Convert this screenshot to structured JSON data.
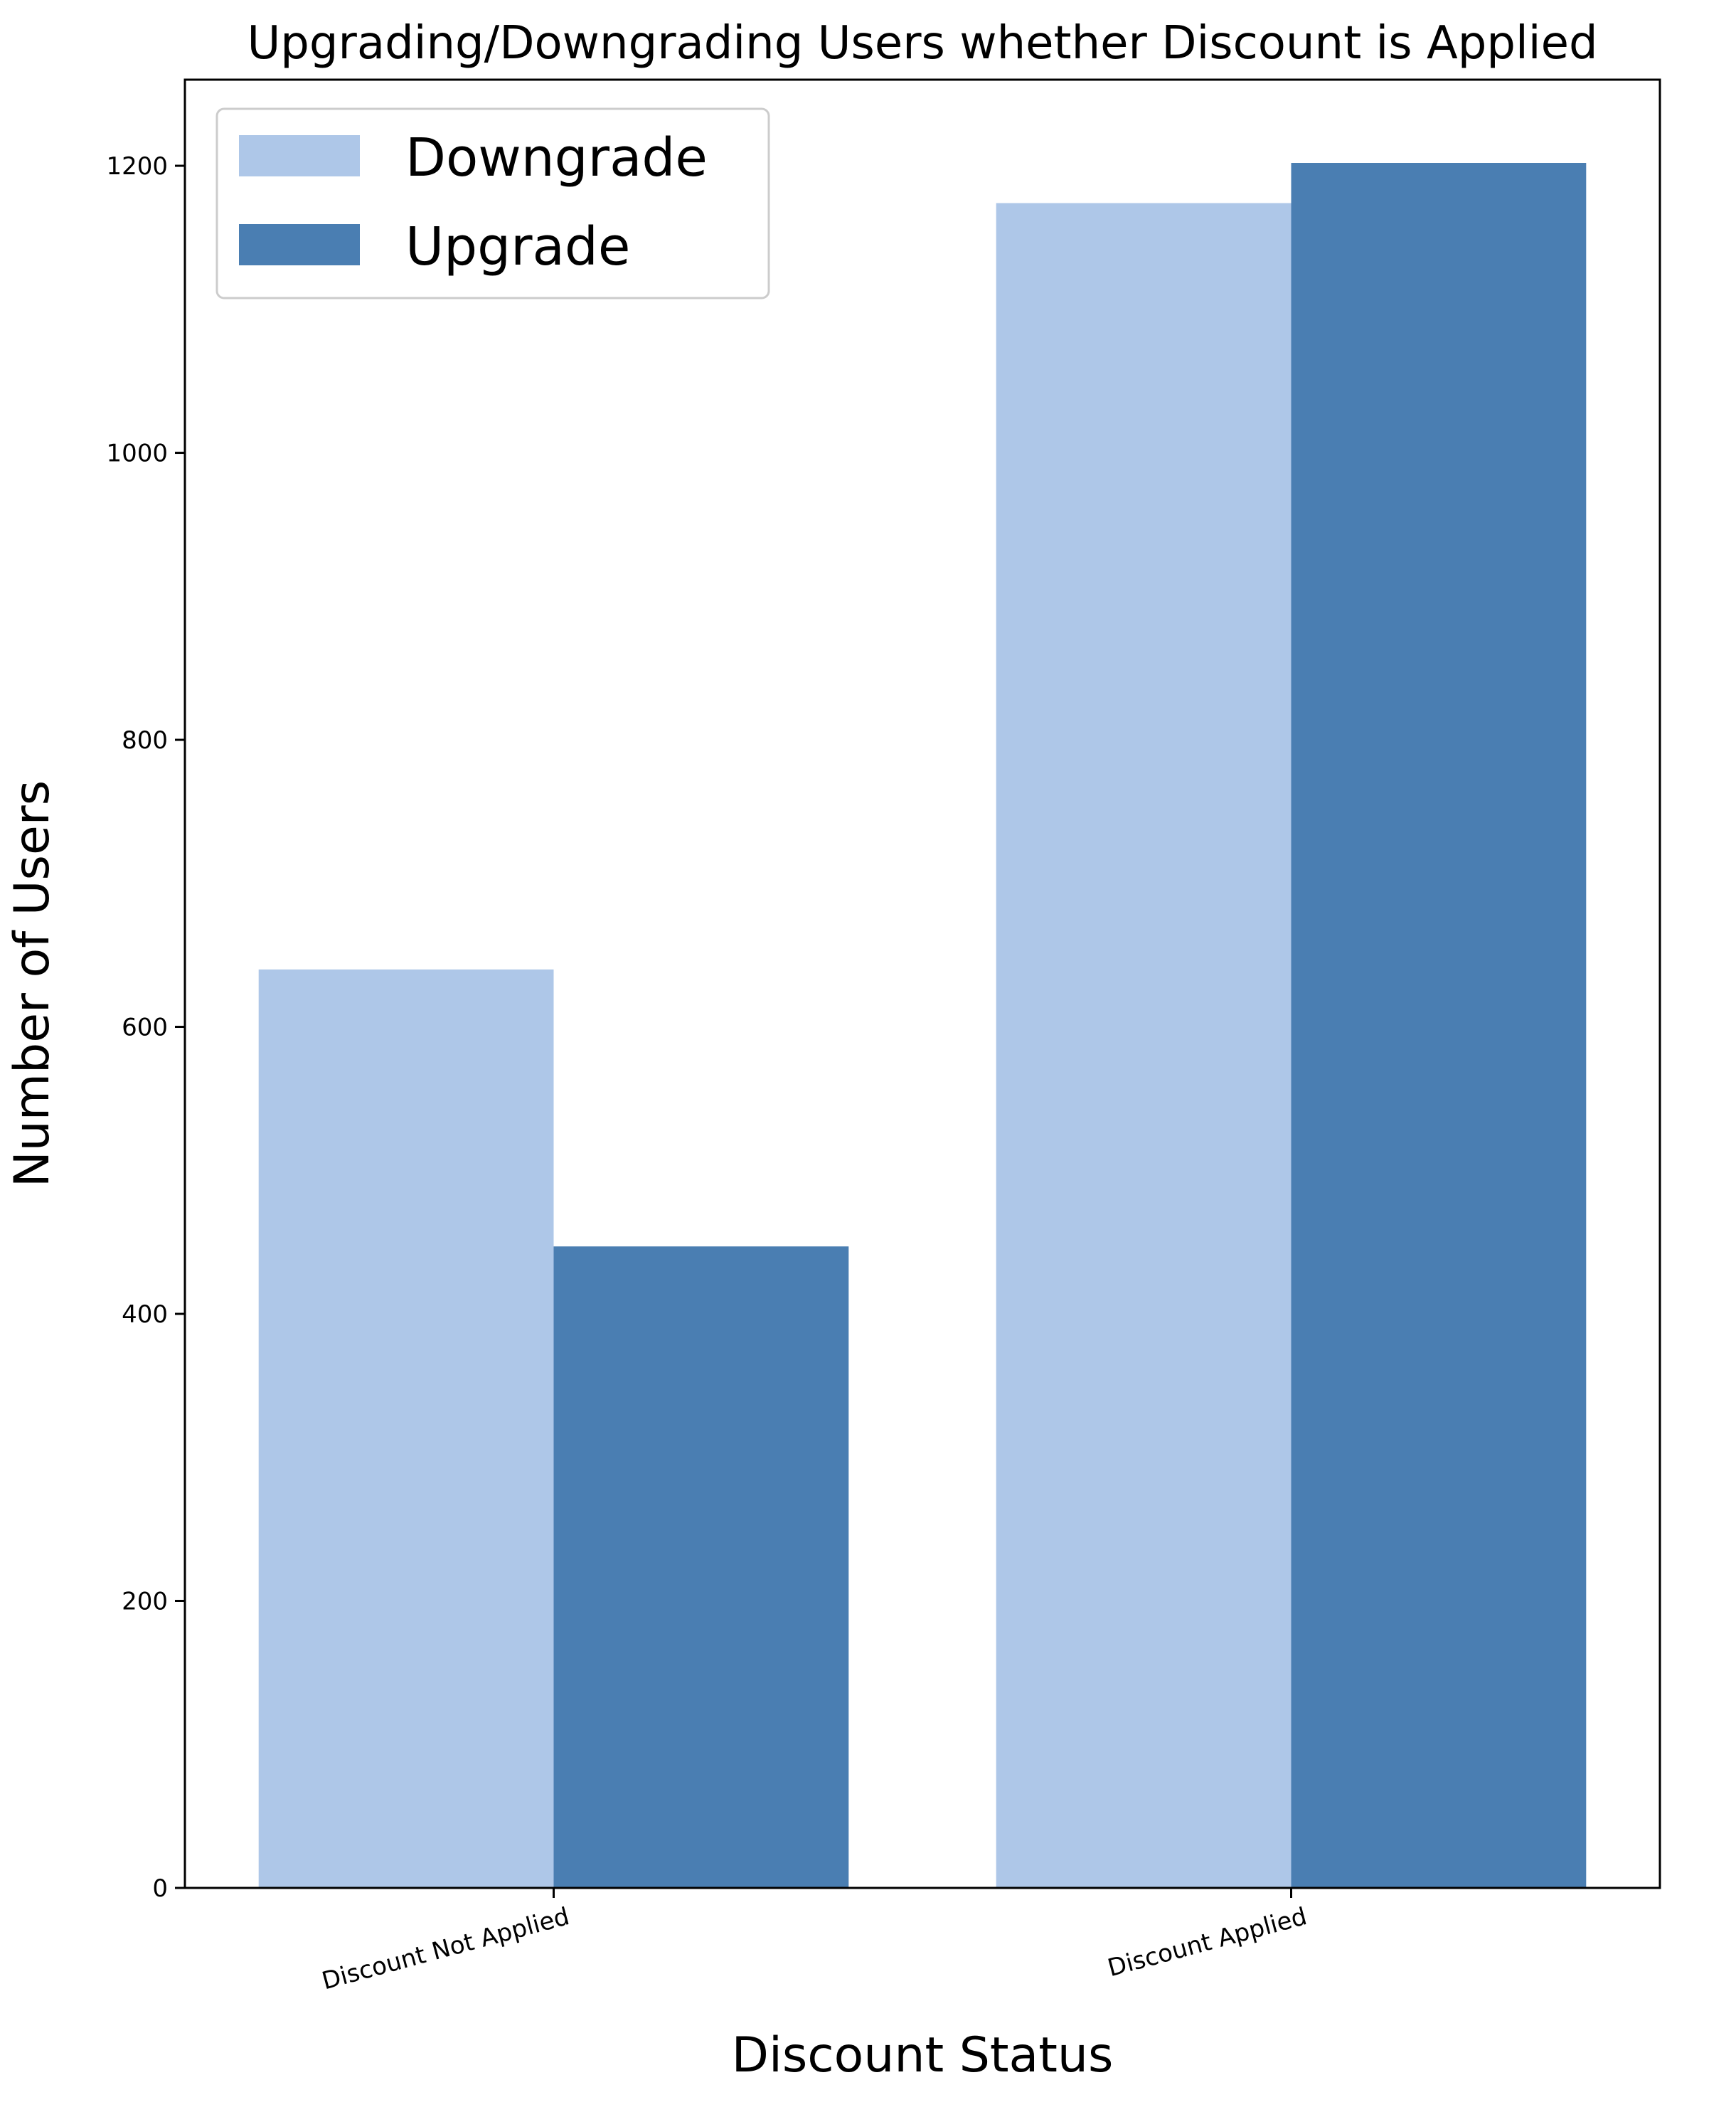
{
  "chart_data": {
    "type": "bar",
    "title": "Upgrading/Downgrading Users whether Discount is Applied",
    "xlabel": "Discount Status",
    "ylabel": "Number of Users",
    "categories": [
      "Discount Not Applied",
      "Discount Applied"
    ],
    "series": [
      {
        "name": "Downgrade",
        "values": [
          640,
          1174
        ],
        "color": "#aec7e8"
      },
      {
        "name": "Upgrade",
        "values": [
          447,
          1202
        ],
        "color": "#4a7eb2"
      }
    ],
    "ylim": [
      0,
      1260
    ],
    "yticks": [
      0,
      200,
      400,
      600,
      800,
      1000,
      1200
    ],
    "grid": false,
    "legend_position": "top-left"
  }
}
